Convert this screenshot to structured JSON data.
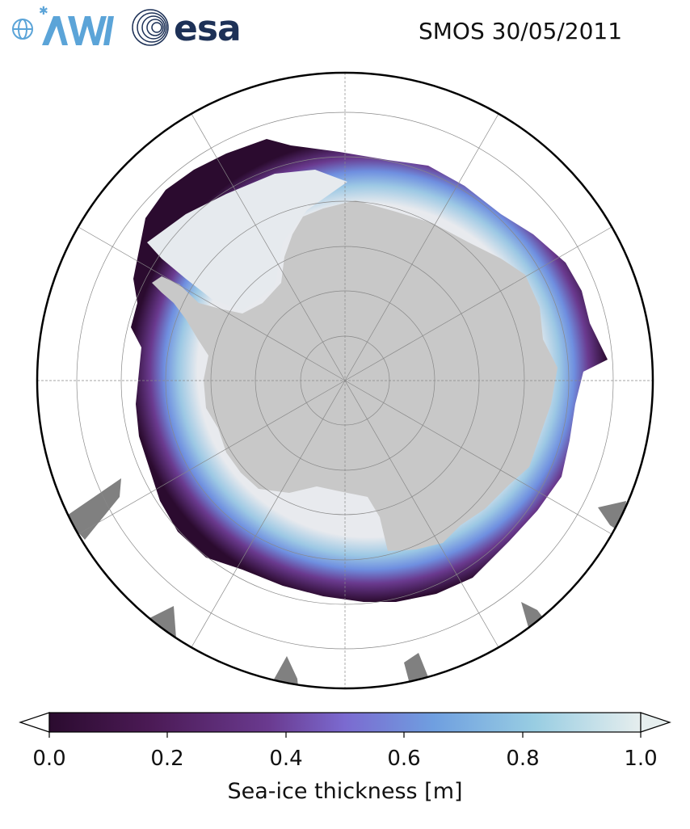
{
  "header": {
    "title": "SMOS 30/05/2011",
    "logos": [
      {
        "name": "AWI",
        "icon": "awi-logo"
      },
      {
        "name": "esa",
        "icon": "esa-logo"
      }
    ]
  },
  "map": {
    "projection": "south-polar-stereographic",
    "region": "Antarctica / Southern Ocean",
    "colors": {
      "land": "#c8c8c8",
      "missing_data": "#808080",
      "ocean": "#ffffff",
      "ice_thick": "#e8eaee",
      "graticule": "#888888"
    },
    "graticule": true
  },
  "colorbar": {
    "label": "Sea-ice thickness [m]",
    "ticks": [
      "0.0",
      "0.2",
      "0.4",
      "0.6",
      "0.8",
      "1.0"
    ],
    "tick_values": [
      0.0,
      0.2,
      0.4,
      0.6,
      0.8,
      1.0
    ],
    "range": [
      0.0,
      1.0
    ],
    "extend": "both",
    "colormap": [
      "#2b0b2f",
      "#4b1a55",
      "#6a3a8f",
      "#7b6ad0",
      "#6f9fe0",
      "#98cde2",
      "#e6eeee"
    ]
  },
  "chart_data": {
    "type": "heatmap",
    "title": "SMOS 30/05/2011",
    "colorbar_label": "Sea-ice thickness [m]",
    "vmin": 0.0,
    "vmax": 1.0
  }
}
